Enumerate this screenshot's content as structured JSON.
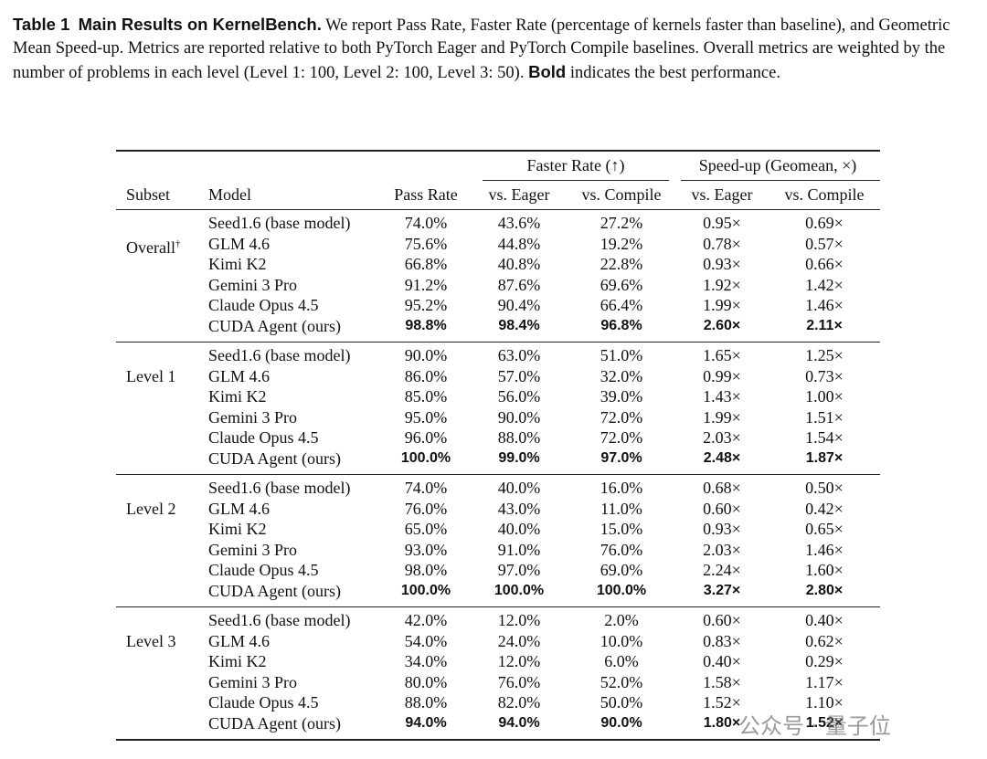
{
  "caption": {
    "label": "Table 1",
    "title": "Main Results on KernelBench.",
    "text": "We report Pass Rate, Faster Rate (percentage of kernels faster than baseline), and Geometric Mean Speed-up. Metrics are reported relative to both PyTorch Eager and PyTorch Compile baselines. Overall metrics are weighted by the number of problems in each level (Level 1: 100, Level 2: 100, Level 3: 50).",
    "bold_word": "Bold",
    "tail": "indicates the best performance."
  },
  "table": {
    "group_headers": [
      "Faster Rate (↑)",
      "Speed-up (Geomean, ×)"
    ],
    "columns": [
      "Subset",
      "Model",
      "Pass Rate",
      "vs. Eager",
      "vs. Compile",
      "vs. Eager",
      "vs. Compile"
    ],
    "groups": [
      {
        "name": "Overall",
        "mark": "†",
        "bold_row": 5,
        "rows": [
          [
            "Seed1.6 (base model)",
            "74.0%",
            "43.6%",
            "27.2%",
            "0.95×",
            "0.69×"
          ],
          [
            "GLM 4.6",
            "75.6%",
            "44.8%",
            "19.2%",
            "0.78×",
            "0.57×"
          ],
          [
            "Kimi K2",
            "66.8%",
            "40.8%",
            "22.8%",
            "0.93×",
            "0.66×"
          ],
          [
            "Gemini 3 Pro",
            "91.2%",
            "87.6%",
            "69.6%",
            "1.92×",
            "1.42×"
          ],
          [
            "Claude Opus 4.5",
            "95.2%",
            "90.4%",
            "66.4%",
            "1.99×",
            "1.46×"
          ],
          [
            "CUDA Agent (ours)",
            "98.8%",
            "98.4%",
            "96.8%",
            "2.60×",
            "2.11×"
          ]
        ]
      },
      {
        "name": "Level 1",
        "bold_row": 5,
        "rows": [
          [
            "Seed1.6 (base model)",
            "90.0%",
            "63.0%",
            "51.0%",
            "1.65×",
            "1.25×"
          ],
          [
            "GLM 4.6",
            "86.0%",
            "57.0%",
            "32.0%",
            "0.99×",
            "0.73×"
          ],
          [
            "Kimi K2",
            "85.0%",
            "56.0%",
            "39.0%",
            "1.43×",
            "1.00×"
          ],
          [
            "Gemini 3 Pro",
            "95.0%",
            "90.0%",
            "72.0%",
            "1.99×",
            "1.51×"
          ],
          [
            "Claude Opus 4.5",
            "96.0%",
            "88.0%",
            "72.0%",
            "2.03×",
            "1.54×"
          ],
          [
            "CUDA Agent (ours)",
            "100.0%",
            "99.0%",
            "97.0%",
            "2.48×",
            "1.87×"
          ]
        ]
      },
      {
        "name": "Level 2",
        "bold_row": 5,
        "rows": [
          [
            "Seed1.6 (base model)",
            "74.0%",
            "40.0%",
            "16.0%",
            "0.68×",
            "0.50×"
          ],
          [
            "GLM 4.6",
            "76.0%",
            "43.0%",
            "11.0%",
            "0.60×",
            "0.42×"
          ],
          [
            "Kimi K2",
            "65.0%",
            "40.0%",
            "15.0%",
            "0.93×",
            "0.65×"
          ],
          [
            "Gemini 3 Pro",
            "93.0%",
            "91.0%",
            "76.0%",
            "2.03×",
            "1.46×"
          ],
          [
            "Claude Opus 4.5",
            "98.0%",
            "97.0%",
            "69.0%",
            "2.24×",
            "1.60×"
          ],
          [
            "CUDA Agent (ours)",
            "100.0%",
            "100.0%",
            "100.0%",
            "3.27×",
            "2.80×"
          ]
        ]
      },
      {
        "name": "Level 3",
        "bold_row": 5,
        "rows": [
          [
            "Seed1.6 (base model)",
            "42.0%",
            "12.0%",
            "2.0%",
            "0.60×",
            "0.40×"
          ],
          [
            "GLM 4.6",
            "54.0%",
            "24.0%",
            "10.0%",
            "0.83×",
            "0.62×"
          ],
          [
            "Kimi K2",
            "34.0%",
            "12.0%",
            "6.0%",
            "0.40×",
            "0.29×"
          ],
          [
            "Gemini 3 Pro",
            "80.0%",
            "76.0%",
            "52.0%",
            "1.58×",
            "1.17×"
          ],
          [
            "Claude Opus 4.5",
            "88.0%",
            "82.0%",
            "50.0%",
            "1.52×",
            "1.10×"
          ],
          [
            "CUDA Agent (ours)",
            "94.0%",
            "94.0%",
            "90.0%",
            "1.80×",
            "1.52×"
          ]
        ]
      }
    ]
  },
  "watermark": "公众号 · 量子位"
}
